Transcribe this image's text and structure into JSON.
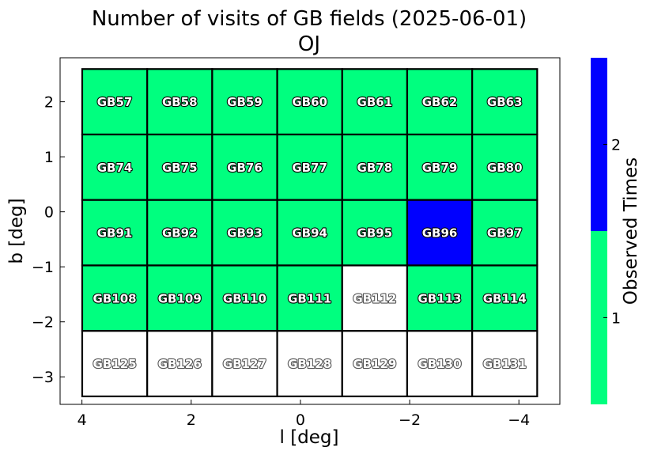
{
  "chart_data": {
    "type": "heatmap",
    "title": "Number of visits of GB fields (2025-06-01)",
    "subtitle": "OJ",
    "xlabel": "l [deg]",
    "ylabel": "b [deg]",
    "xlim": [
      4.4,
      -4.75
    ],
    "ylim": [
      -3.5,
      2.8
    ],
    "xticks": [
      4,
      2,
      0,
      -2,
      -4
    ],
    "yticks": [
      2,
      1,
      0,
      -1,
      -2,
      -3
    ],
    "xtick_labels": [
      "4",
      "2",
      "0",
      "−2",
      "−4"
    ],
    "ytick_labels": [
      "2",
      "1",
      "0",
      "−1",
      "−2",
      "−3"
    ],
    "grid": false,
    "cell_width_deg": 1.19,
    "cell_height_deg": 1.19,
    "columns_l_center": [
      3.4,
      2.21,
      1.02,
      -0.17,
      -1.36,
      -2.55,
      -3.74
    ],
    "rows_b_center": [
      2.0,
      0.81,
      -0.38,
      -1.57,
      -2.76
    ],
    "fields": [
      [
        "GB57",
        "GB58",
        "GB59",
        "GB60",
        "GB61",
        "GB62",
        "GB63"
      ],
      [
        "GB74",
        "GB75",
        "GB76",
        "GB77",
        "GB78",
        "GB79",
        "GB80"
      ],
      [
        "GB91",
        "GB92",
        "GB93",
        "GB94",
        "GB95",
        "GB96",
        "GB97"
      ],
      [
        "GB108",
        "GB109",
        "GB110",
        "GB111",
        "GB112",
        "GB113",
        "GB114"
      ],
      [
        "GB125",
        "GB126",
        "GB127",
        "GB128",
        "GB129",
        "GB130",
        "GB131"
      ]
    ],
    "visits": [
      [
        1,
        1,
        1,
        1,
        1,
        1,
        1
      ],
      [
        1,
        1,
        1,
        1,
        1,
        1,
        1
      ],
      [
        1,
        1,
        1,
        1,
        1,
        2,
        1
      ],
      [
        1,
        1,
        1,
        1,
        0,
        1,
        1
      ],
      [
        0,
        0,
        0,
        0,
        0,
        0,
        0
      ]
    ],
    "colorbar": {
      "label": "Observed Times",
      "range": [
        0.5,
        2.5
      ],
      "boundaries": [
        0.5,
        1.5,
        2.5
      ],
      "ticks": [
        1,
        2
      ],
      "tick_labels": [
        "1",
        "2"
      ],
      "colors": [
        "#00ff7f",
        "#0000ff"
      ]
    },
    "zero_color": "#ffffff"
  }
}
